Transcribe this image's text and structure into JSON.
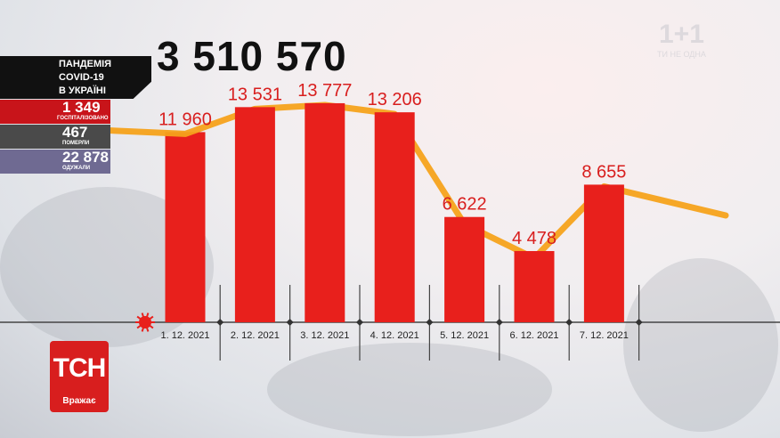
{
  "headline_total": "3 510 570",
  "panel": {
    "title_lines": [
      "ПАНДЕМІЯ",
      "COVID-19",
      "В УКРАЇНІ"
    ],
    "rows": [
      {
        "value": "1 349",
        "label": "ГОСПІТАЛІЗОВАНО",
        "color": "#c8141a"
      },
      {
        "value": "467",
        "label": "ПОМЕРЛИ",
        "color": "#4a4a4a"
      },
      {
        "value": "22 878",
        "label": "ОДУЖАЛИ",
        "color": "#6f6a92"
      }
    ]
  },
  "logo": {
    "text": "ТСН",
    "subtitle": "Вражає"
  },
  "watermark": {
    "text": "1+1",
    "subtitle": "ТИ НЕ ОДНА"
  },
  "chart_data": {
    "type": "bar",
    "categories": [
      "1. 12. 2021",
      "2. 12. 2021",
      "3. 12. 2021",
      "4. 12. 2021",
      "5. 12. 2021",
      "6. 12. 2021",
      "7. 12. 2021"
    ],
    "values": [
      11960,
      13531,
      13777,
      13206,
      6622,
      4478,
      8655
    ],
    "labels": [
      "11 960",
      "13 531",
      "13 777",
      "13 206",
      "6 622",
      "4 478",
      "8 655"
    ],
    "bar_color": "#e8201c",
    "trend_color": "#f5a21b",
    "ylim": [
      0,
      14000
    ]
  }
}
